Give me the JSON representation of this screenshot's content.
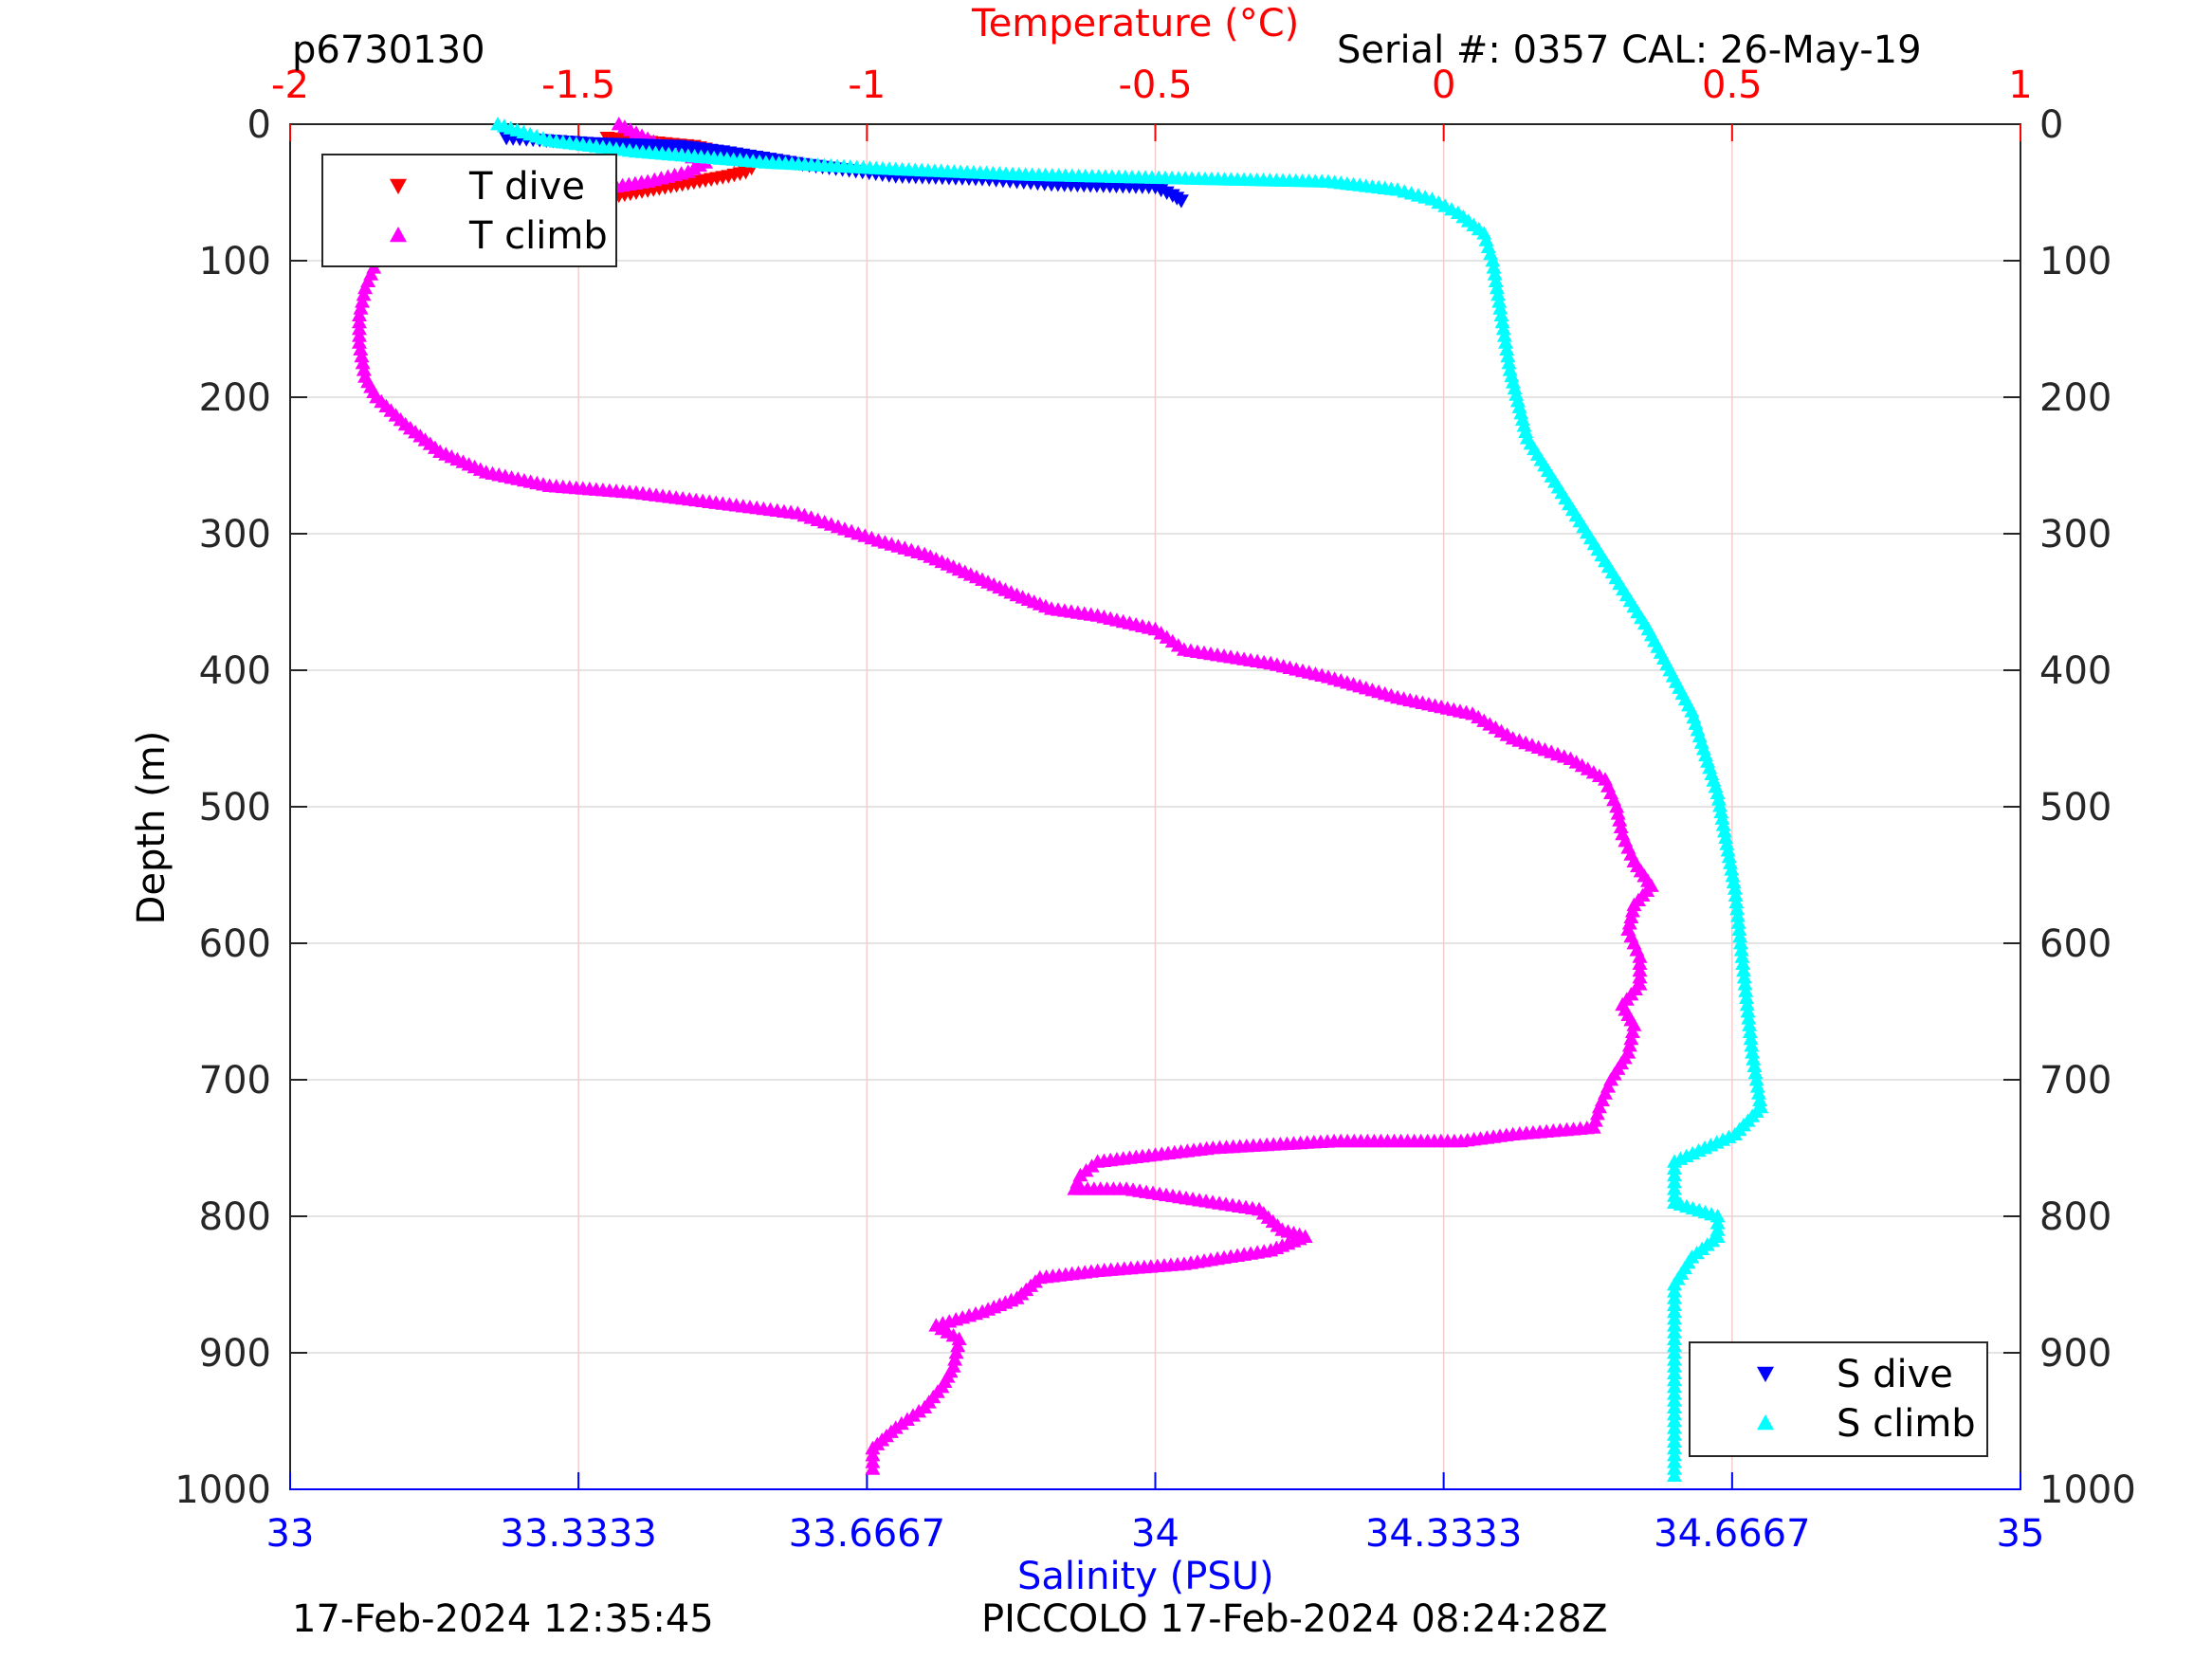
{
  "header": {
    "plot_id": "p6730130",
    "serial_cal": "Serial #: 0357  CAL: 26-May-19"
  },
  "footer": {
    "left_timestamp": "17-Feb-2024 12:35:45",
    "right_label": "PICCOLO 17-Feb-2024 08:24:28Z"
  },
  "chart_data": {
    "type": "scatter",
    "ylabel": "Depth (m)",
    "ylim": [
      0,
      1000
    ],
    "y_reversed": true,
    "y_ticks": [
      0,
      100,
      200,
      300,
      400,
      500,
      600,
      700,
      800,
      900,
      1000
    ],
    "x_top": {
      "label": "Temperature (°C)",
      "range": [
        -2,
        1
      ],
      "ticks": [
        -2,
        -1.5,
        -1,
        -0.5,
        0,
        0.5,
        1
      ],
      "tick_labels": [
        "-2",
        "-1.5",
        "-1",
        "-0.5",
        "0",
        "0.5",
        "1"
      ],
      "color": "#ff0000"
    },
    "x_bottom": {
      "label": "Salinity (PSU)",
      "range": [
        33,
        35
      ],
      "ticks": [
        33,
        33.3333,
        33.6667,
        34,
        34.3333,
        34.6667,
        35
      ],
      "tick_labels": [
        "33",
        "33.3333",
        "33.6667",
        "34",
        "34.3333",
        "34.6667",
        "35"
      ],
      "color": "#0000ff"
    },
    "grid": true,
    "legends": [
      {
        "placement": "top-left",
        "entries": [
          "T dive",
          "T climb"
        ]
      },
      {
        "placement": "bottom-right",
        "entries": [
          "S dive",
          "S climb"
        ]
      }
    ],
    "series": [
      {
        "name": "T dive",
        "axis": "temperature",
        "marker": "triangle-down",
        "color": "#ff0000",
        "points": [
          [
            -1.45,
            10
          ],
          [
            -1.4,
            12
          ],
          [
            -1.35,
            14
          ],
          [
            -1.3,
            16
          ],
          [
            -1.26,
            20
          ],
          [
            -1.24,
            24
          ],
          [
            -1.22,
            28
          ],
          [
            -1.2,
            32
          ],
          [
            -1.21,
            35
          ],
          [
            -1.24,
            38
          ],
          [
            -1.28,
            41
          ],
          [
            -1.32,
            44
          ],
          [
            -1.36,
            47
          ],
          [
            -1.4,
            50
          ],
          [
            -1.44,
            53
          ],
          [
            -1.47,
            56
          ]
        ]
      },
      {
        "name": "T climb",
        "axis": "temperature",
        "marker": "triangle-up",
        "color": "#ff00ff",
        "points": [
          [
            -1.43,
            0
          ],
          [
            -1.36,
            15
          ],
          [
            -1.28,
            28
          ],
          [
            -1.31,
            35
          ],
          [
            -1.38,
            42
          ],
          [
            -1.5,
            50
          ],
          [
            -1.63,
            60
          ],
          [
            -1.74,
            70
          ],
          [
            -1.8,
            80
          ],
          [
            -1.83,
            90
          ],
          [
            -1.85,
            100
          ],
          [
            -1.87,
            120
          ],
          [
            -1.88,
            140
          ],
          [
            -1.88,
            160
          ],
          [
            -1.87,
            185
          ],
          [
            -1.85,
            200
          ],
          [
            -1.8,
            220
          ],
          [
            -1.74,
            240
          ],
          [
            -1.66,
            255
          ],
          [
            -1.55,
            265
          ],
          [
            -1.4,
            270
          ],
          [
            -1.25,
            278
          ],
          [
            -1.12,
            285
          ],
          [
            -1.05,
            295
          ],
          [
            -0.98,
            305
          ],
          [
            -0.9,
            315
          ],
          [
            -0.82,
            330
          ],
          [
            -0.74,
            345
          ],
          [
            -0.68,
            355
          ],
          [
            -0.6,
            360
          ],
          [
            -0.5,
            370
          ],
          [
            -0.45,
            385
          ],
          [
            -0.3,
            395
          ],
          [
            -0.2,
            405
          ],
          [
            -0.08,
            420
          ],
          [
            0.05,
            432
          ],
          [
            0.12,
            450
          ],
          [
            0.22,
            465
          ],
          [
            0.28,
            480
          ],
          [
            0.3,
            500
          ],
          [
            0.31,
            520
          ],
          [
            0.33,
            540
          ],
          [
            0.36,
            558
          ],
          [
            0.33,
            572
          ],
          [
            0.32,
            590
          ],
          [
            0.34,
            610
          ],
          [
            0.34,
            630
          ],
          [
            0.31,
            645
          ],
          [
            0.33,
            660
          ],
          [
            0.32,
            680
          ],
          [
            0.29,
            700
          ],
          [
            0.27,
            720
          ],
          [
            0.26,
            735
          ],
          [
            0.12,
            740
          ],
          [
            0.03,
            745
          ],
          [
            -0.19,
            745
          ],
          [
            -0.4,
            750
          ],
          [
            -0.5,
            755
          ],
          [
            -0.6,
            760
          ],
          [
            -0.63,
            770
          ],
          [
            -0.64,
            780
          ],
          [
            -0.55,
            780
          ],
          [
            -0.32,
            795
          ],
          [
            -0.28,
            810
          ],
          [
            -0.24,
            815
          ],
          [
            -0.3,
            825
          ],
          [
            -0.45,
            835
          ],
          [
            -0.6,
            840
          ],
          [
            -0.7,
            845
          ],
          [
            -0.74,
            860
          ],
          [
            -0.8,
            870
          ],
          [
            -0.88,
            880
          ],
          [
            -0.84,
            890
          ],
          [
            -0.85,
            910
          ],
          [
            -0.87,
            925
          ],
          [
            -0.9,
            940
          ],
          [
            -0.95,
            955
          ],
          [
            -0.99,
            970
          ],
          [
            -0.99,
            985
          ]
        ]
      },
      {
        "name": "S dive",
        "axis": "salinity",
        "marker": "triangle-down",
        "color": "#0000ff",
        "points": [
          [
            33.25,
            10
          ],
          [
            33.35,
            14
          ],
          [
            33.45,
            16
          ],
          [
            33.5,
            20
          ],
          [
            33.6,
            30
          ],
          [
            33.7,
            38
          ],
          [
            33.8,
            40
          ],
          [
            33.88,
            44
          ],
          [
            34,
            46
          ],
          [
            34.02,
            52
          ],
          [
            34.03,
            56
          ]
        ]
      },
      {
        "name": "S climb",
        "axis": "salinity",
        "marker": "triangle-up",
        "color": "#00ffff",
        "points": [
          [
            33.24,
            0
          ],
          [
            33.3,
            12
          ],
          [
            33.4,
            20
          ],
          [
            33.55,
            28
          ],
          [
            33.7,
            33
          ],
          [
            33.85,
            37
          ],
          [
            34.05,
            40
          ],
          [
            34.2,
            42
          ],
          [
            34.28,
            48
          ],
          [
            34.32,
            55
          ],
          [
            34.35,
            65
          ],
          [
            34.38,
            80
          ],
          [
            34.39,
            100
          ],
          [
            34.4,
            140
          ],
          [
            34.41,
            180
          ],
          [
            34.43,
            230
          ],
          [
            34.47,
            270
          ],
          [
            34.52,
            320
          ],
          [
            34.57,
            370
          ],
          [
            34.62,
            430
          ],
          [
            34.65,
            490
          ],
          [
            34.67,
            560
          ],
          [
            34.68,
            620
          ],
          [
            34.69,
            680
          ],
          [
            34.7,
            720
          ],
          [
            34.67,
            740
          ],
          [
            34.6,
            760
          ],
          [
            34.6,
            790
          ],
          [
            34.65,
            800
          ],
          [
            34.65,
            815
          ],
          [
            34.62,
            830
          ],
          [
            34.6,
            850
          ],
          [
            34.6,
            880
          ],
          [
            34.6,
            920
          ],
          [
            34.6,
            990
          ]
        ]
      }
    ]
  }
}
